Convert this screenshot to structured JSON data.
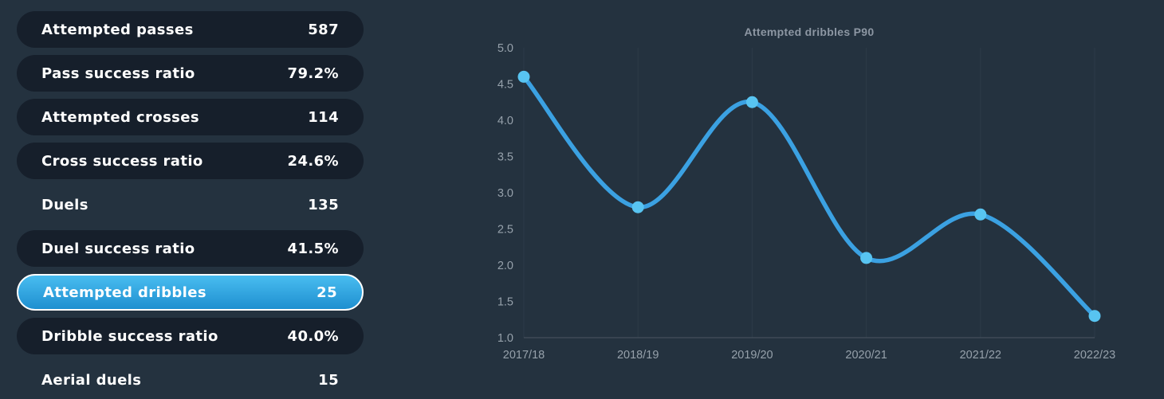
{
  "stats": {
    "rows": [
      {
        "label": "Attempted passes",
        "value": "587",
        "variant": "pill"
      },
      {
        "label": "Pass success ratio",
        "value": "79.2%",
        "variant": "pill"
      },
      {
        "label": "Attempted crosses",
        "value": "114",
        "variant": "pill"
      },
      {
        "label": "Cross success ratio",
        "value": "24.6%",
        "variant": "pill"
      },
      {
        "label": "Duels",
        "value": "135",
        "variant": "plain"
      },
      {
        "label": "Duel success ratio",
        "value": "41.5%",
        "variant": "pill"
      },
      {
        "label": "Attempted dribbles",
        "value": "25",
        "variant": "selected"
      },
      {
        "label": "Dribble success ratio",
        "value": "40.0%",
        "variant": "pill"
      },
      {
        "label": "Aerial duels",
        "value": "15",
        "variant": "plain"
      }
    ]
  },
  "chart_data": {
    "type": "line",
    "title": "Attempted dribbles P90",
    "categories": [
      "2017/18",
      "2018/19",
      "2019/20",
      "2020/21",
      "2021/22",
      "2022/23"
    ],
    "values": [
      4.6,
      2.8,
      4.25,
      2.1,
      2.7,
      1.3
    ],
    "ylim": [
      1.0,
      5.0
    ],
    "ytick_step": 0.5,
    "yticks": [
      "5.0",
      "4.5",
      "4.0",
      "3.5",
      "3.0",
      "2.5",
      "2.0",
      "1.5",
      "1.0"
    ],
    "grid": "vertical-only",
    "legend": "none"
  },
  "colors": {
    "background": "#24323f",
    "pill_background": "#161f2b",
    "selected_gradient_top": "#49bdf0",
    "selected_gradient_bottom": "#1e8fd0",
    "selected_border": "#ffffff",
    "row_text": "#ffffff",
    "line": "#3ba1e2",
    "marker": "#58c4f1",
    "grid_line": "#2d3b48",
    "axis_line": "#43505c",
    "tick_label": "#96a1ab",
    "chart_title": "#8d97a3"
  }
}
